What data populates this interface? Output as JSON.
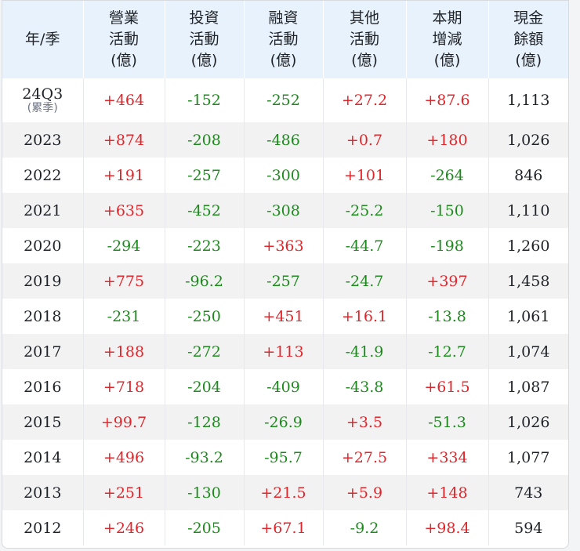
{
  "table": {
    "headers": [
      {
        "lines": [
          "年/季"
        ]
      },
      {
        "lines": [
          "營業",
          "活動",
          "(億)"
        ]
      },
      {
        "lines": [
          "投資",
          "活動",
          "(億)"
        ]
      },
      {
        "lines": [
          "融資",
          "活動",
          "(億)"
        ]
      },
      {
        "lines": [
          "其他",
          "活動",
          "(億)"
        ]
      },
      {
        "lines": [
          "本期",
          "增減",
          "(億)"
        ]
      },
      {
        "lines": [
          "現金",
          "餘額",
          "(億)"
        ]
      }
    ],
    "rows": [
      {
        "period": "24Q3",
        "period_note": "(累季)",
        "operating": "+464",
        "investing": "-152",
        "financing": "-252",
        "other": "+27.2",
        "change": "+87.6",
        "balance": "1,113"
      },
      {
        "period": "2023",
        "operating": "+874",
        "investing": "-208",
        "financing": "-486",
        "other": "+0.7",
        "change": "+180",
        "balance": "1,026"
      },
      {
        "period": "2022",
        "operating": "+191",
        "investing": "-257",
        "financing": "-300",
        "other": "+101",
        "change": "-264",
        "balance": "846"
      },
      {
        "period": "2021",
        "operating": "+635",
        "investing": "-452",
        "financing": "-308",
        "other": "-25.2",
        "change": "-150",
        "balance": "1,110"
      },
      {
        "period": "2020",
        "operating": "-294",
        "investing": "-223",
        "financing": "+363",
        "other": "-44.7",
        "change": "-198",
        "balance": "1,260"
      },
      {
        "period": "2019",
        "operating": "+775",
        "investing": "-96.2",
        "financing": "-257",
        "other": "-24.7",
        "change": "+397",
        "balance": "1,458"
      },
      {
        "period": "2018",
        "operating": "-231",
        "investing": "-250",
        "financing": "+451",
        "other": "+16.1",
        "change": "-13.8",
        "balance": "1,061"
      },
      {
        "period": "2017",
        "operating": "+188",
        "investing": "-272",
        "financing": "+113",
        "other": "-41.9",
        "change": "-12.7",
        "balance": "1,074"
      },
      {
        "period": "2016",
        "operating": "+718",
        "investing": "-204",
        "financing": "-409",
        "other": "-43.8",
        "change": "+61.5",
        "balance": "1,087"
      },
      {
        "period": "2015",
        "operating": "+99.7",
        "investing": "-128",
        "financing": "-26.9",
        "other": "+3.5",
        "change": "-51.3",
        "balance": "1,026"
      },
      {
        "period": "2014",
        "operating": "+496",
        "investing": "-93.2",
        "financing": "-95.7",
        "other": "+27.5",
        "change": "+334",
        "balance": "1,077"
      },
      {
        "period": "2013",
        "operating": "+251",
        "investing": "-130",
        "financing": "+21.5",
        "other": "+5.9",
        "change": "+148",
        "balance": "743"
      },
      {
        "period": "2012",
        "operating": "+246",
        "investing": "-205",
        "financing": "+67.1",
        "other": "-9.2",
        "change": "+98.4",
        "balance": "594"
      }
    ]
  },
  "colors": {
    "positive": "#e0262b",
    "negative": "#1e8a1e",
    "header_bg": "#e8f2fc",
    "stripe_bg": "#f2f2f3"
  }
}
